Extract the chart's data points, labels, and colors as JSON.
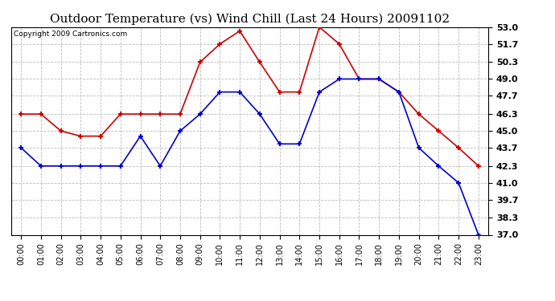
{
  "title": "Outdoor Temperature (vs) Wind Chill (Last 24 Hours) 20091102",
  "copyright": "Copyright 2009 Cartronics.com",
  "hours": [
    "00:00",
    "01:00",
    "02:00",
    "03:00",
    "04:00",
    "05:00",
    "06:00",
    "07:00",
    "08:00",
    "09:00",
    "10:00",
    "11:00",
    "12:00",
    "13:00",
    "14:00",
    "15:00",
    "16:00",
    "17:00",
    "18:00",
    "19:00",
    "20:00",
    "21:00",
    "22:00",
    "23:00"
  ],
  "outdoor_temp": [
    46.3,
    46.3,
    45.0,
    44.6,
    44.6,
    46.3,
    46.3,
    46.3,
    46.3,
    50.3,
    51.7,
    52.7,
    50.3,
    48.0,
    48.0,
    53.0,
    51.7,
    49.0,
    49.0,
    48.0,
    46.3,
    45.0,
    43.7,
    42.3
  ],
  "wind_chill": [
    43.7,
    42.3,
    42.3,
    42.3,
    42.3,
    42.3,
    44.6,
    42.3,
    45.0,
    46.3,
    48.0,
    48.0,
    46.3,
    44.0,
    44.0,
    48.0,
    49.0,
    49.0,
    49.0,
    48.0,
    43.7,
    42.3,
    41.0,
    37.0
  ],
  "temp_color": "#cc0000",
  "chill_color": "#0000cc",
  "ylim_min": 37.0,
  "ylim_max": 53.0,
  "yticks": [
    37.0,
    38.3,
    39.7,
    41.0,
    42.3,
    43.7,
    45.0,
    46.3,
    47.7,
    49.0,
    50.3,
    51.7,
    53.0
  ],
  "bg_color": "#ffffff",
  "grid_color": "#bbbbbb",
  "title_fontsize": 11,
  "copyright_fontsize": 6.5,
  "tick_fontsize": 8,
  "xlabel_fontsize": 7
}
